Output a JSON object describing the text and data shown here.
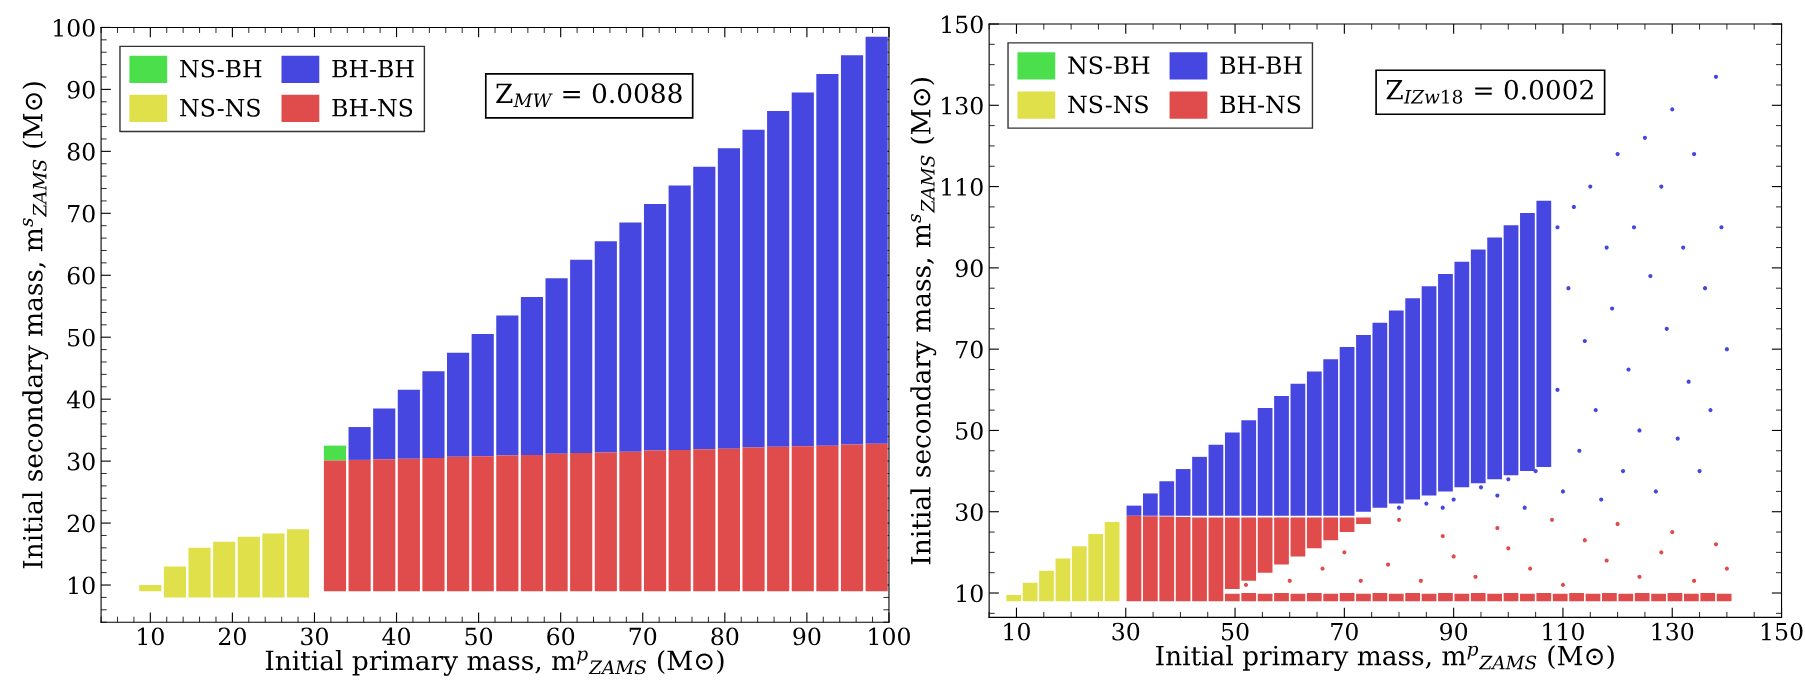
{
  "chart_data": [
    {
      "type": "bar",
      "xlabel": "Initial primary mass, m$^{p}$$_{ZAMS}$ (M⊙)",
      "ylabel": "Initial secondary mass, m$^{s}$$_{ZAMS}$ (M⊙)",
      "annotations": [
        "Z$_{MW}$ = 0.0088"
      ],
      "legend": "top left",
      "xlim": [
        4,
        100
      ],
      "xticks": [
        10,
        20,
        30,
        40,
        50,
        60,
        70,
        80,
        90,
        100
      ],
      "ylim": [
        4,
        100
      ],
      "yticks": [
        10,
        20,
        30,
        40,
        50,
        60,
        70,
        80,
        90,
        100
      ],
      "series": [
        {
          "name": "NS-BH",
          "color": "#4be04b",
          "x": [
            32.5
          ],
          "base": [
            30.1
          ],
          "values": [
            2.4
          ]
        },
        {
          "name": "BH-BH",
          "color": "#4646e0",
          "x": [
            35.5,
            38.5,
            41.5,
            44.5,
            47.5,
            50.5,
            53.5,
            56.5,
            59.5,
            62.5,
            65.5,
            68.5,
            71.5,
            74.5,
            77.5,
            80.5,
            83.5,
            86.5,
            89.5,
            92.5,
            95.5,
            98.5
          ],
          "base": [
            30.2,
            30.3,
            30.4,
            30.5,
            30.7,
            30.8,
            30.9,
            31.0,
            31.2,
            31.3,
            31.4,
            31.5,
            31.7,
            31.8,
            31.9,
            32.0,
            32.2,
            32.3,
            32.4,
            32.5,
            32.7,
            32.8
          ],
          "values": [
            5.3,
            8.2,
            11.1,
            14.0,
            16.8,
            19.7,
            22.6,
            25.5,
            28.3,
            31.2,
            34.1,
            37.0,
            39.8,
            42.7,
            45.6,
            48.5,
            51.3,
            54.2,
            57.1,
            60.0,
            62.8,
            65.7
          ]
        },
        {
          "name": "NS-NS",
          "color": "#e0e04b",
          "x": [
            10,
            13,
            16,
            19,
            22,
            25,
            28
          ],
          "base": [
            9,
            8,
            8,
            8,
            8,
            8,
            8
          ],
          "values": [
            1,
            5,
            8,
            9,
            9.8,
            10.3,
            11
          ]
        },
        {
          "name": "BH-NS",
          "color": "#e04b4b",
          "x": [
            32.5,
            35.5,
            38.5,
            41.5,
            44.5,
            47.5,
            50.5,
            53.5,
            56.5,
            59.5,
            62.5,
            65.5,
            68.5,
            71.5,
            74.5,
            77.5,
            80.5,
            83.5,
            86.5,
            89.5,
            92.5,
            95.5,
            98.5
          ],
          "base": [
            9,
            9,
            9,
            9,
            9,
            9,
            9,
            9,
            9,
            9,
            9,
            9,
            9,
            9,
            9,
            9,
            9,
            9,
            9,
            9,
            9,
            9,
            9
          ],
          "values": [
            21.1,
            21.2,
            21.3,
            21.4,
            21.5,
            21.7,
            21.8,
            21.9,
            22.0,
            22.2,
            22.3,
            22.4,
            22.5,
            22.7,
            22.8,
            22.9,
            23.0,
            23.2,
            23.3,
            23.4,
            23.5,
            23.7,
            23.8
          ]
        }
      ]
    },
    {
      "type": "bar",
      "xlabel": "Initial primary mass, m$^{p}$$_{ZAMS}$ (M⊙)",
      "ylabel": "Initial secondary mass, m$^{s}$$_{ZAMS}$ (M⊙)",
      "annotations": [
        "Z$_{IZw18}$ = 0.0002"
      ],
      "legend": "top left",
      "xlim": [
        5,
        150
      ],
      "xticks": [
        10,
        30,
        50,
        70,
        90,
        110,
        130,
        150
      ],
      "ylim": [
        4,
        150
      ],
      "yticks": [
        10,
        30,
        50,
        70,
        90,
        110,
        130,
        150
      ],
      "series": [
        {
          "name": "NS-BH",
          "color": "#4be04b"
        },
        {
          "name": "BH-BH",
          "color": "#4646e0",
          "x": [
            31.5,
            34.5,
            37.5,
            40.5,
            43.5,
            46.5,
            49.5,
            52.5,
            55.5,
            58.5,
            61.5,
            64.5,
            67.5,
            70.5,
            73.5,
            76.5,
            79.5,
            82.5,
            85.5,
            88.5,
            91.5,
            94.5,
            97.5,
            100.5,
            103.5,
            106.5
          ],
          "base": [
            29,
            29,
            29,
            29,
            29,
            29,
            29,
            29,
            29,
            29,
            29,
            29,
            29,
            29,
            30,
            31,
            32,
            33,
            34,
            35,
            36,
            37,
            38,
            39,
            40,
            41
          ],
          "values": [
            2.5,
            5.5,
            8.5,
            11.5,
            14.5,
            17.5,
            20.5,
            23.5,
            26.5,
            29.5,
            32.5,
            35.5,
            38.5,
            41.5,
            43.5,
            45.5,
            47.5,
            49.5,
            51.5,
            53.5,
            55.5,
            57.5,
            59.5,
            61.5,
            63.5,
            65.5
          ]
        },
        {
          "name": "NS-NS",
          "color": "#e0e04b",
          "x": [
            9.5,
            12.5,
            15.5,
            18.5,
            21.5,
            24.5,
            27.5
          ],
          "base": [
            8,
            8,
            8,
            8,
            8,
            8,
            8
          ],
          "values": [
            1.5,
            4.5,
            7.5,
            10.5,
            13.5,
            16.5,
            19.5
          ]
        },
        {
          "name": "BH-NS",
          "color": "#e04b4b",
          "x": [
            31.5,
            34.5,
            37.5,
            40.5,
            43.5,
            46.5,
            49.5,
            52.5,
            55.5,
            58.5,
            61.5,
            64.5,
            67.5,
            70.5,
            73.5
          ],
          "base": [
            8,
            8,
            8,
            8,
            8,
            10,
            11,
            13,
            15,
            17,
            19,
            21,
            23,
            25,
            27
          ],
          "values": [
            21,
            20.9,
            20.8,
            20.7,
            20.6,
            18.6,
            17.6,
            15.6,
            13.6,
            11.6,
            9.6,
            7.6,
            5.6,
            3.6,
            1.6
          ]
        },
        {
          "color": "#e04b4b",
          "x": [
            46.5,
            49.5,
            52.5,
            55.5,
            58.5,
            61.5,
            64.5,
            67.5,
            70.5,
            73.5,
            76.5,
            79.5,
            82.5,
            85.5,
            88.5,
            91.5,
            94.5,
            97.5,
            100.5,
            103.5,
            106.5,
            109.5,
            112.5,
            115.5,
            118.5,
            121.5,
            124.5,
            127.5,
            130.5,
            133.5,
            136.5,
            139.5
          ],
          "base": [
            8,
            8,
            8,
            8,
            8,
            8,
            8,
            8,
            8,
            8,
            8,
            8,
            8,
            8,
            8,
            8,
            8,
            8,
            8,
            8,
            8,
            8,
            8,
            8,
            8,
            8,
            8,
            8,
            8,
            8,
            8,
            8
          ],
          "values": [
            2,
            1.8,
            2,
            1.8,
            2,
            1.8,
            2,
            1.8,
            2,
            1.8,
            2,
            1.8,
            2,
            1.8,
            2,
            1.8,
            2,
            1.8,
            2,
            1.8,
            2,
            1.8,
            2,
            1.8,
            2,
            1.8,
            2,
            1.8,
            2,
            1.8,
            2,
            1.8
          ]
        },
        {
          "color": "#4646e0",
          "type": "scatter",
          "marker": "circle",
          "x": [
            109,
            109,
            110,
            111,
            112,
            113,
            114,
            115,
            116,
            117,
            118,
            119,
            120,
            121,
            122,
            123,
            124,
            125,
            126,
            127,
            128,
            129,
            130,
            131,
            132,
            133,
            134,
            135,
            136,
            137,
            138,
            139,
            140,
            80,
            85,
            90,
            95,
            100,
            105,
            88,
            98,
            103
          ],
          "values": [
            100,
            60,
            35,
            85,
            105,
            45,
            72,
            110,
            55,
            33,
            95,
            80,
            118,
            40,
            65,
            100,
            50,
            122,
            88,
            35,
            110,
            75,
            129,
            48,
            95,
            62,
            118,
            40,
            85,
            55,
            137,
            100,
            70,
            31,
            32,
            33,
            36,
            38,
            40,
            31,
            34,
            31
          ]
        },
        {
          "color": "#e04b4b",
          "type": "scatter",
          "marker": "circle",
          "x": [
            52,
            60,
            66,
            70,
            73,
            78,
            80,
            84,
            88,
            90,
            94,
            98,
            100,
            104,
            108,
            110,
            114,
            118,
            120,
            124,
            128,
            130,
            134,
            138,
            140
          ],
          "values": [
            12,
            13,
            16,
            20,
            13,
            17,
            28,
            13,
            24,
            19,
            14,
            26,
            21,
            16,
            28,
            12,
            23,
            18,
            27,
            14,
            20,
            25,
            13,
            22,
            16
          ]
        }
      ]
    }
  ]
}
